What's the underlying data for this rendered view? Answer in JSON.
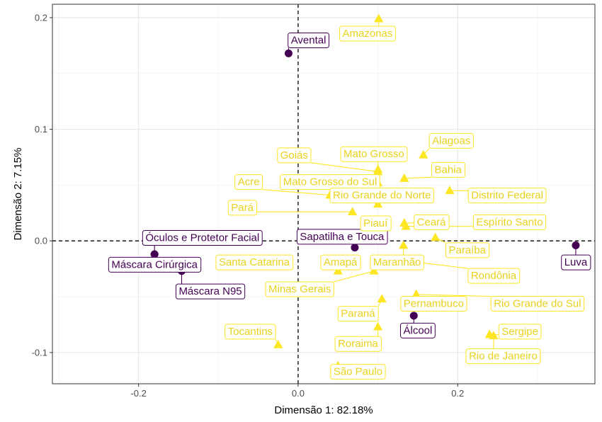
{
  "chart_data": {
    "type": "scatter",
    "title": "",
    "xlabel": "Dimensão 1: 82.18%",
    "ylabel": "Dimensão 2: 7.15%",
    "xlim": [
      -0.308,
      0.372
    ],
    "ylim": [
      -0.128,
      0.212
    ],
    "x_ticks": [
      -0.2,
      0.0,
      0.2
    ],
    "x_tick_labels": [
      "-0.2",
      "0.0",
      "0.2"
    ],
    "y_ticks": [
      -0.1,
      0.0,
      0.1,
      0.2
    ],
    "y_tick_labels": [
      "-0.1",
      "0.0",
      "0.1",
      "0.2"
    ],
    "grid": true,
    "reference_lines": {
      "x": 0,
      "y": 0,
      "style": "dashed"
    },
    "colors": {
      "items": "#440154",
      "states": "#FDE725",
      "states_text": "#E8D21D"
    },
    "series": [
      {
        "kind": "items",
        "marker": "circle",
        "points": [
          {
            "label": "Avental",
            "x": -0.012,
            "y": 0.168,
            "lx": 0.013,
            "ly": 0.18
          },
          {
            "label": "Óculos e Protetor Facial",
            "x": -0.18,
            "y": -0.012,
            "lx": -0.12,
            "ly": 0.003
          },
          {
            "label": "Máscara Cirúrgica",
            "x": -0.18,
            "y": -0.012,
            "lx": -0.18,
            "ly": -0.021
          },
          {
            "label": "Máscara N95",
            "x": -0.146,
            "y": -0.027,
            "lx": -0.11,
            "ly": -0.045
          },
          {
            "label": "Sapatilha e Touca",
            "x": 0.071,
            "y": -0.006,
            "lx": 0.055,
            "ly": 0.004
          },
          {
            "label": "Álcool",
            "x": 0.145,
            "y": -0.067,
            "lx": 0.15,
            "ly": -0.08
          },
          {
            "label": "Luva",
            "x": 0.348,
            "y": -0.004,
            "lx": 0.348,
            "ly": -0.019
          }
        ]
      },
      {
        "kind": "states",
        "marker": "triangle",
        "points": [
          {
            "label": "Amazonas",
            "x": 0.101,
            "y": 0.199,
            "lx": 0.087,
            "ly": 0.186
          },
          {
            "label": "Alagoas",
            "x": 0.157,
            "y": 0.077,
            "lx": 0.192,
            "ly": 0.09
          },
          {
            "label": "Mato Grosso",
            "x": 0.1,
            "y": 0.064,
            "lx": 0.095,
            "ly": 0.078
          },
          {
            "label": "Goiás",
            "x": 0.1,
            "y": 0.062,
            "lx": -0.005,
            "ly": 0.077
          },
          {
            "label": "Bahia",
            "x": 0.133,
            "y": 0.056,
            "lx": 0.188,
            "ly": 0.064
          },
          {
            "label": "Acre",
            "x": 0.04,
            "y": 0.041,
            "lx": -0.062,
            "ly": 0.053
          },
          {
            "label": "Mato Grosso do Sul",
            "x": 0.1,
            "y": 0.052,
            "lx": 0.04,
            "ly": 0.053
          },
          {
            "label": "Rio Grande do Norte",
            "x": 0.1,
            "y": 0.033,
            "lx": 0.105,
            "ly": 0.041
          },
          {
            "label": "Distrito Federal",
            "x": 0.19,
            "y": 0.045,
            "lx": 0.262,
            "ly": 0.041
          },
          {
            "label": "Pará",
            "x": 0.068,
            "y": 0.026,
            "lx": -0.07,
            "ly": 0.03
          },
          {
            "label": "Piauí",
            "x": 0.1,
            "y": 0.01,
            "lx": 0.097,
            "ly": 0.016
          },
          {
            "label": "Ceará",
            "x": 0.133,
            "y": 0.016,
            "lx": 0.167,
            "ly": 0.017
          },
          {
            "label": "Espírito Santo",
            "x": 0.135,
            "y": 0.013,
            "lx": 0.265,
            "ly": 0.017
          },
          {
            "label": "Paraíba",
            "x": 0.172,
            "y": 0.003,
            "lx": 0.212,
            "ly": -0.008
          },
          {
            "label": "Santa Catarina",
            "x": -0.03,
            "y": -0.02,
            "lx": -0.055,
            "ly": -0.019
          },
          {
            "label": "Amapá",
            "x": 0.05,
            "y": -0.027,
            "lx": 0.053,
            "ly": -0.019
          },
          {
            "label": "Maranhão",
            "x": 0.132,
            "y": -0.004,
            "lx": 0.124,
            "ly": -0.019
          },
          {
            "label": "Rondônia",
            "x": 0.135,
            "y": -0.018,
            "lx": 0.245,
            "ly": -0.031
          },
          {
            "label": "Minas Gerais",
            "x": 0.095,
            "y": -0.027,
            "lx": 0.002,
            "ly": -0.043
          },
          {
            "label": "Pernambuco",
            "x": 0.148,
            "y": -0.048,
            "lx": 0.17,
            "ly": -0.056
          },
          {
            "label": "Rio Grande do Sul",
            "x": 0.148,
            "y": -0.048,
            "lx": 0.3,
            "ly": -0.056
          },
          {
            "label": "Paraná",
            "x": 0.105,
            "y": -0.052,
            "lx": 0.075,
            "ly": -0.065
          },
          {
            "label": "Sergipe",
            "x": 0.24,
            "y": -0.084,
            "lx": 0.278,
            "ly": -0.081
          },
          {
            "label": "Tocantins",
            "x": -0.025,
            "y": -0.093,
            "lx": -0.06,
            "ly": -0.081
          },
          {
            "label": "Roraima",
            "x": 0.1,
            "y": -0.077,
            "lx": 0.075,
            "ly": -0.092
          },
          {
            "label": "Rio de Janeiro",
            "x": 0.245,
            "y": -0.085,
            "lx": 0.257,
            "ly": -0.103
          },
          {
            "label": "São Paulo",
            "x": 0.05,
            "y": -0.112,
            "lx": 0.075,
            "ly": -0.117
          }
        ]
      }
    ]
  }
}
